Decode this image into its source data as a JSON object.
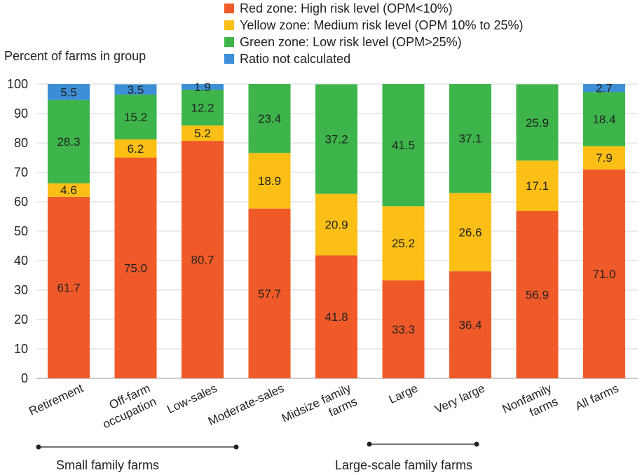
{
  "chart_data": {
    "type": "bar",
    "stacked": true,
    "ylabel": "Percent of farms in group",
    "ylim": [
      0,
      100
    ],
    "yticks": [
      0,
      10,
      20,
      30,
      40,
      50,
      60,
      70,
      80,
      90,
      100
    ],
    "grid": "horizontal",
    "legend_position": "top",
    "categories": [
      [
        "Retirement"
      ],
      [
        "Off-farm",
        "occupation"
      ],
      [
        "Low-sales"
      ],
      [
        "Moderate-sales"
      ],
      [
        "Midsize family",
        "farms"
      ],
      [
        "Large"
      ],
      [
        "Very large"
      ],
      [
        "Nonfamily",
        "farms"
      ],
      [
        "All farms"
      ]
    ],
    "series": [
      {
        "name": "Red zone: High risk level (OPM<10%)",
        "color": "#f05a28",
        "values": [
          61.7,
          75.0,
          80.7,
          57.7,
          41.8,
          33.3,
          36.4,
          56.9,
          71.0
        ],
        "labels": [
          "61.7",
          "75.0",
          "80.7",
          "57.7",
          "41.8",
          "33.3",
          "36.4",
          "56.9",
          "71.0"
        ]
      },
      {
        "name": "Yellow zone: Medium risk level (OPM 10% to 25%)",
        "color": "#fbbf16",
        "values": [
          4.6,
          6.2,
          5.2,
          18.9,
          20.9,
          25.2,
          26.6,
          17.1,
          7.9
        ],
        "labels": [
          "4.6",
          "6.2",
          "5.2",
          "18.9",
          "20.9",
          "25.2",
          "26.6",
          "17.1",
          "7.9"
        ]
      },
      {
        "name": "Green zone: Low risk level (OPM>25%)",
        "color": "#3db54a",
        "values": [
          28.3,
          15.2,
          12.2,
          23.4,
          37.2,
          41.5,
          37.1,
          25.9,
          18.4
        ],
        "labels": [
          "28.3",
          "15.2",
          "12.2",
          "23.4",
          "37.2",
          "41.5",
          "37.1",
          "25.9",
          "18.4"
        ]
      },
      {
        "name": "Ratio not calculated",
        "color": "#3c8fd6",
        "values": [
          5.5,
          3.5,
          1.9,
          0,
          0,
          0,
          0,
          0,
          2.7
        ],
        "labels": [
          "5.5",
          "3.5",
          "1.9",
          "",
          "",
          "",
          "",
          "",
          "2.7"
        ]
      }
    ],
    "groups": [
      {
        "label": "Small family farms",
        "from": 0,
        "to": 2
      },
      {
        "label": "Large-scale family farms",
        "from": 4,
        "to": 6
      }
    ]
  }
}
